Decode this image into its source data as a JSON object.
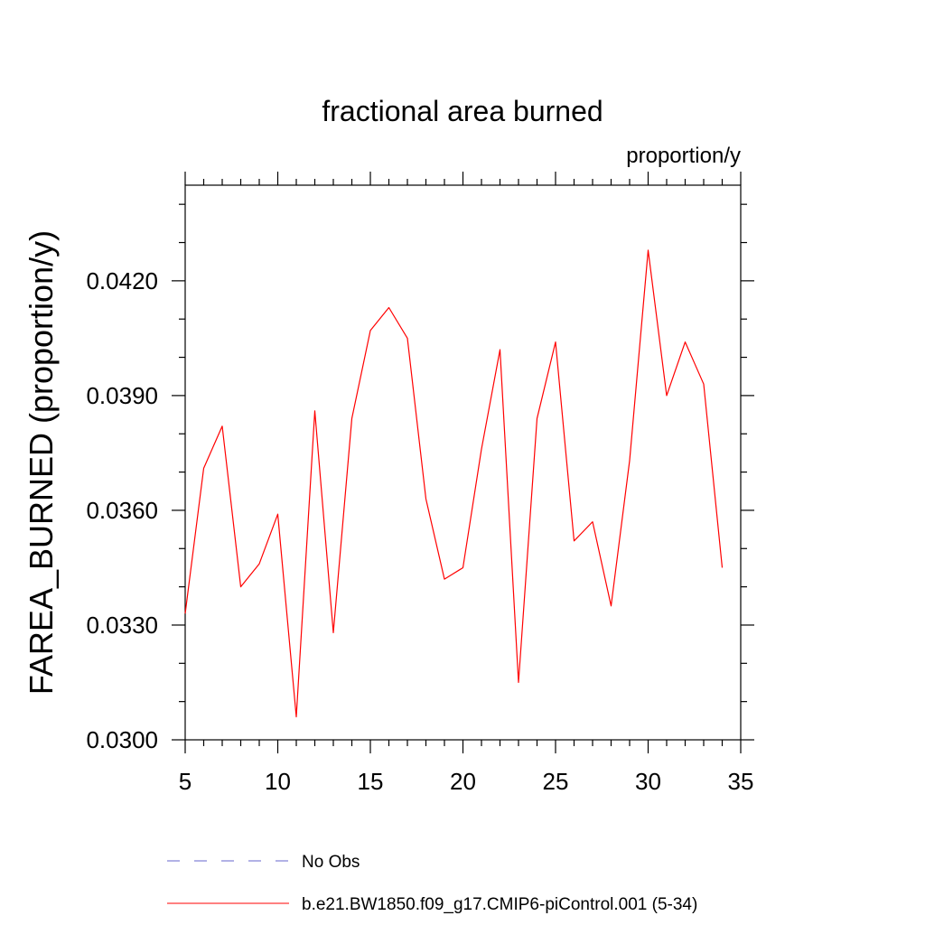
{
  "chart_data": {
    "type": "line",
    "title": "fractional area burned",
    "units_label": "proportion/y",
    "xlabel": "",
    "ylabel": "FAREA_BURNED  (proportion/y)",
    "xlim": [
      5,
      35
    ],
    "ylim": [
      0.03,
      0.0445
    ],
    "x_ticks": [
      5,
      10,
      15,
      20,
      25,
      30,
      35
    ],
    "x_tick_labels": [
      "5",
      "10",
      "15",
      "20",
      "25",
      "30",
      "35"
    ],
    "x_minor_step": 1,
    "y_ticks": [
      0.03,
      0.033,
      0.036,
      0.039,
      0.042
    ],
    "y_tick_labels": [
      "0.0300",
      "0.0330",
      "0.0360",
      "0.0390",
      "0.0420"
    ],
    "y_minor_step": 0.001,
    "x": [
      5,
      6,
      7,
      8,
      9,
      10,
      11,
      12,
      13,
      14,
      15,
      16,
      17,
      18,
      19,
      20,
      21,
      22,
      23,
      24,
      25,
      26,
      27,
      28,
      29,
      30,
      31,
      32,
      33,
      34
    ],
    "series": [
      {
        "name": "b.e21.BW1850.f09_g17.CMIP6-piControl.001 (5-34)",
        "color": "#ff0000",
        "dash": "solid",
        "values": [
          0.0333,
          0.0371,
          0.0382,
          0.034,
          0.0346,
          0.0359,
          0.0306,
          0.0386,
          0.0328,
          0.0384,
          0.0407,
          0.0413,
          0.0405,
          0.0363,
          0.0342,
          0.0345,
          0.0376,
          0.0402,
          0.0315,
          0.0384,
          0.0404,
          0.0352,
          0.0357,
          0.0335,
          0.0373,
          0.0428,
          0.039,
          0.0404,
          0.0393,
          0.0345
        ]
      }
    ],
    "legend": [
      {
        "label": "No Obs",
        "color": "#6666cc",
        "dash": "dashed"
      },
      {
        "label": "b.e21.BW1850.f09_g17.CMIP6-piControl.001 (5-34)",
        "color": "#ff0000",
        "dash": "solid"
      }
    ],
    "legend_position": "bottom"
  }
}
